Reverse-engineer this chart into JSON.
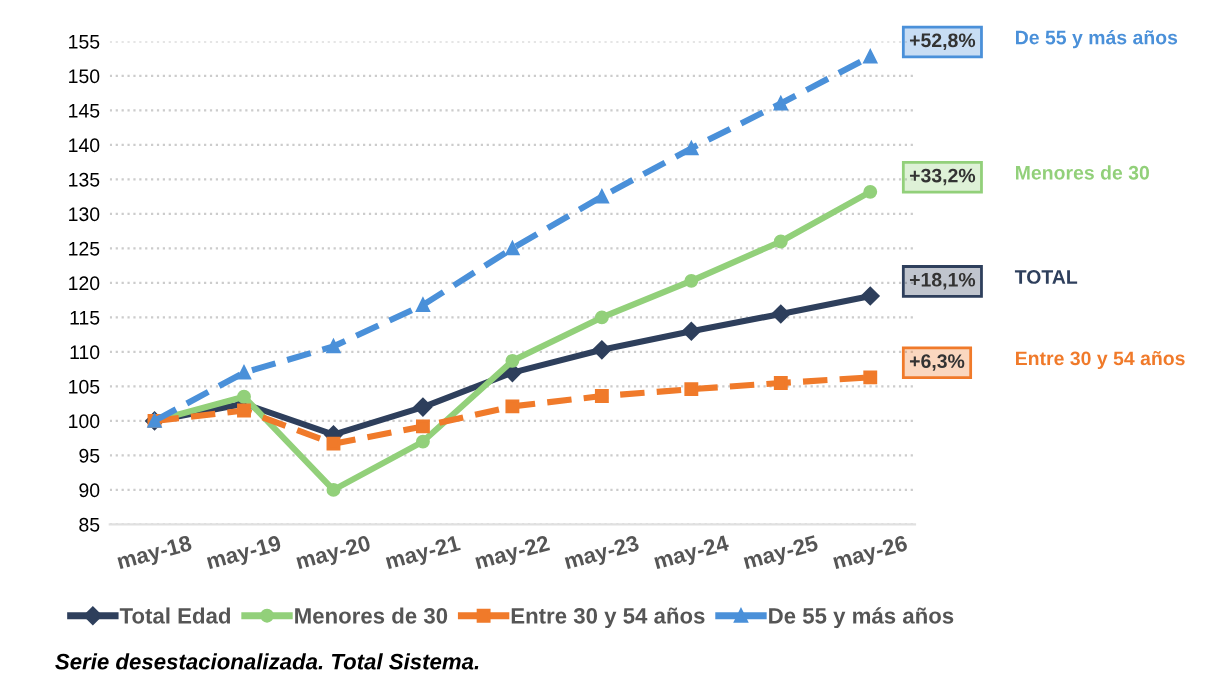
{
  "chart_data": {
    "type": "line",
    "categories": [
      "may-18",
      "may-19",
      "may-20",
      "may-21",
      "may-22",
      "may-23",
      "may-24",
      "may-25",
      "may-26"
    ],
    "series": [
      {
        "name": "Total Edad",
        "color": "#2e3f5c",
        "marker": "diamond",
        "line_style": "solid",
        "values": [
          100,
          102.5,
          98,
          102,
          107,
          110.3,
          113,
          115.5,
          118.1
        ]
      },
      {
        "name": "Menores de 30",
        "color": "#92d07a",
        "marker": "circle",
        "line_style": "solid",
        "values": [
          100,
          103.5,
          90,
          97,
          108.7,
          115,
          120.3,
          126,
          133.2
        ]
      },
      {
        "name": "Entre 30 y 54 años",
        "color": "#f07a2a",
        "marker": "square",
        "line_style": "dashed",
        "values": [
          100,
          101.5,
          96.7,
          99.2,
          102.1,
          103.6,
          104.6,
          105.5,
          106.3
        ]
      },
      {
        "name": "De 55 y más años",
        "color": "#4a90d9",
        "marker": "triangle",
        "line_style": "dashed",
        "values": [
          100,
          107,
          110.8,
          116.8,
          125,
          132.5,
          139.5,
          146,
          152.8
        ]
      }
    ],
    "ylim": [
      85,
      155
    ],
    "yticks": [
      85,
      90,
      95,
      100,
      105,
      110,
      115,
      120,
      125,
      130,
      135,
      140,
      145,
      150,
      155
    ],
    "grid": "y",
    "legend": "bottom",
    "annotations": [
      "+18,1%",
      "TOTAL",
      "+33,2%",
      "Menores de 30",
      "+6,3%",
      "Entre 30 y 54 años",
      "+52,8%",
      "De 55 y más años",
      "Serie desestacionalizada. Total Sistema."
    ]
  }
}
